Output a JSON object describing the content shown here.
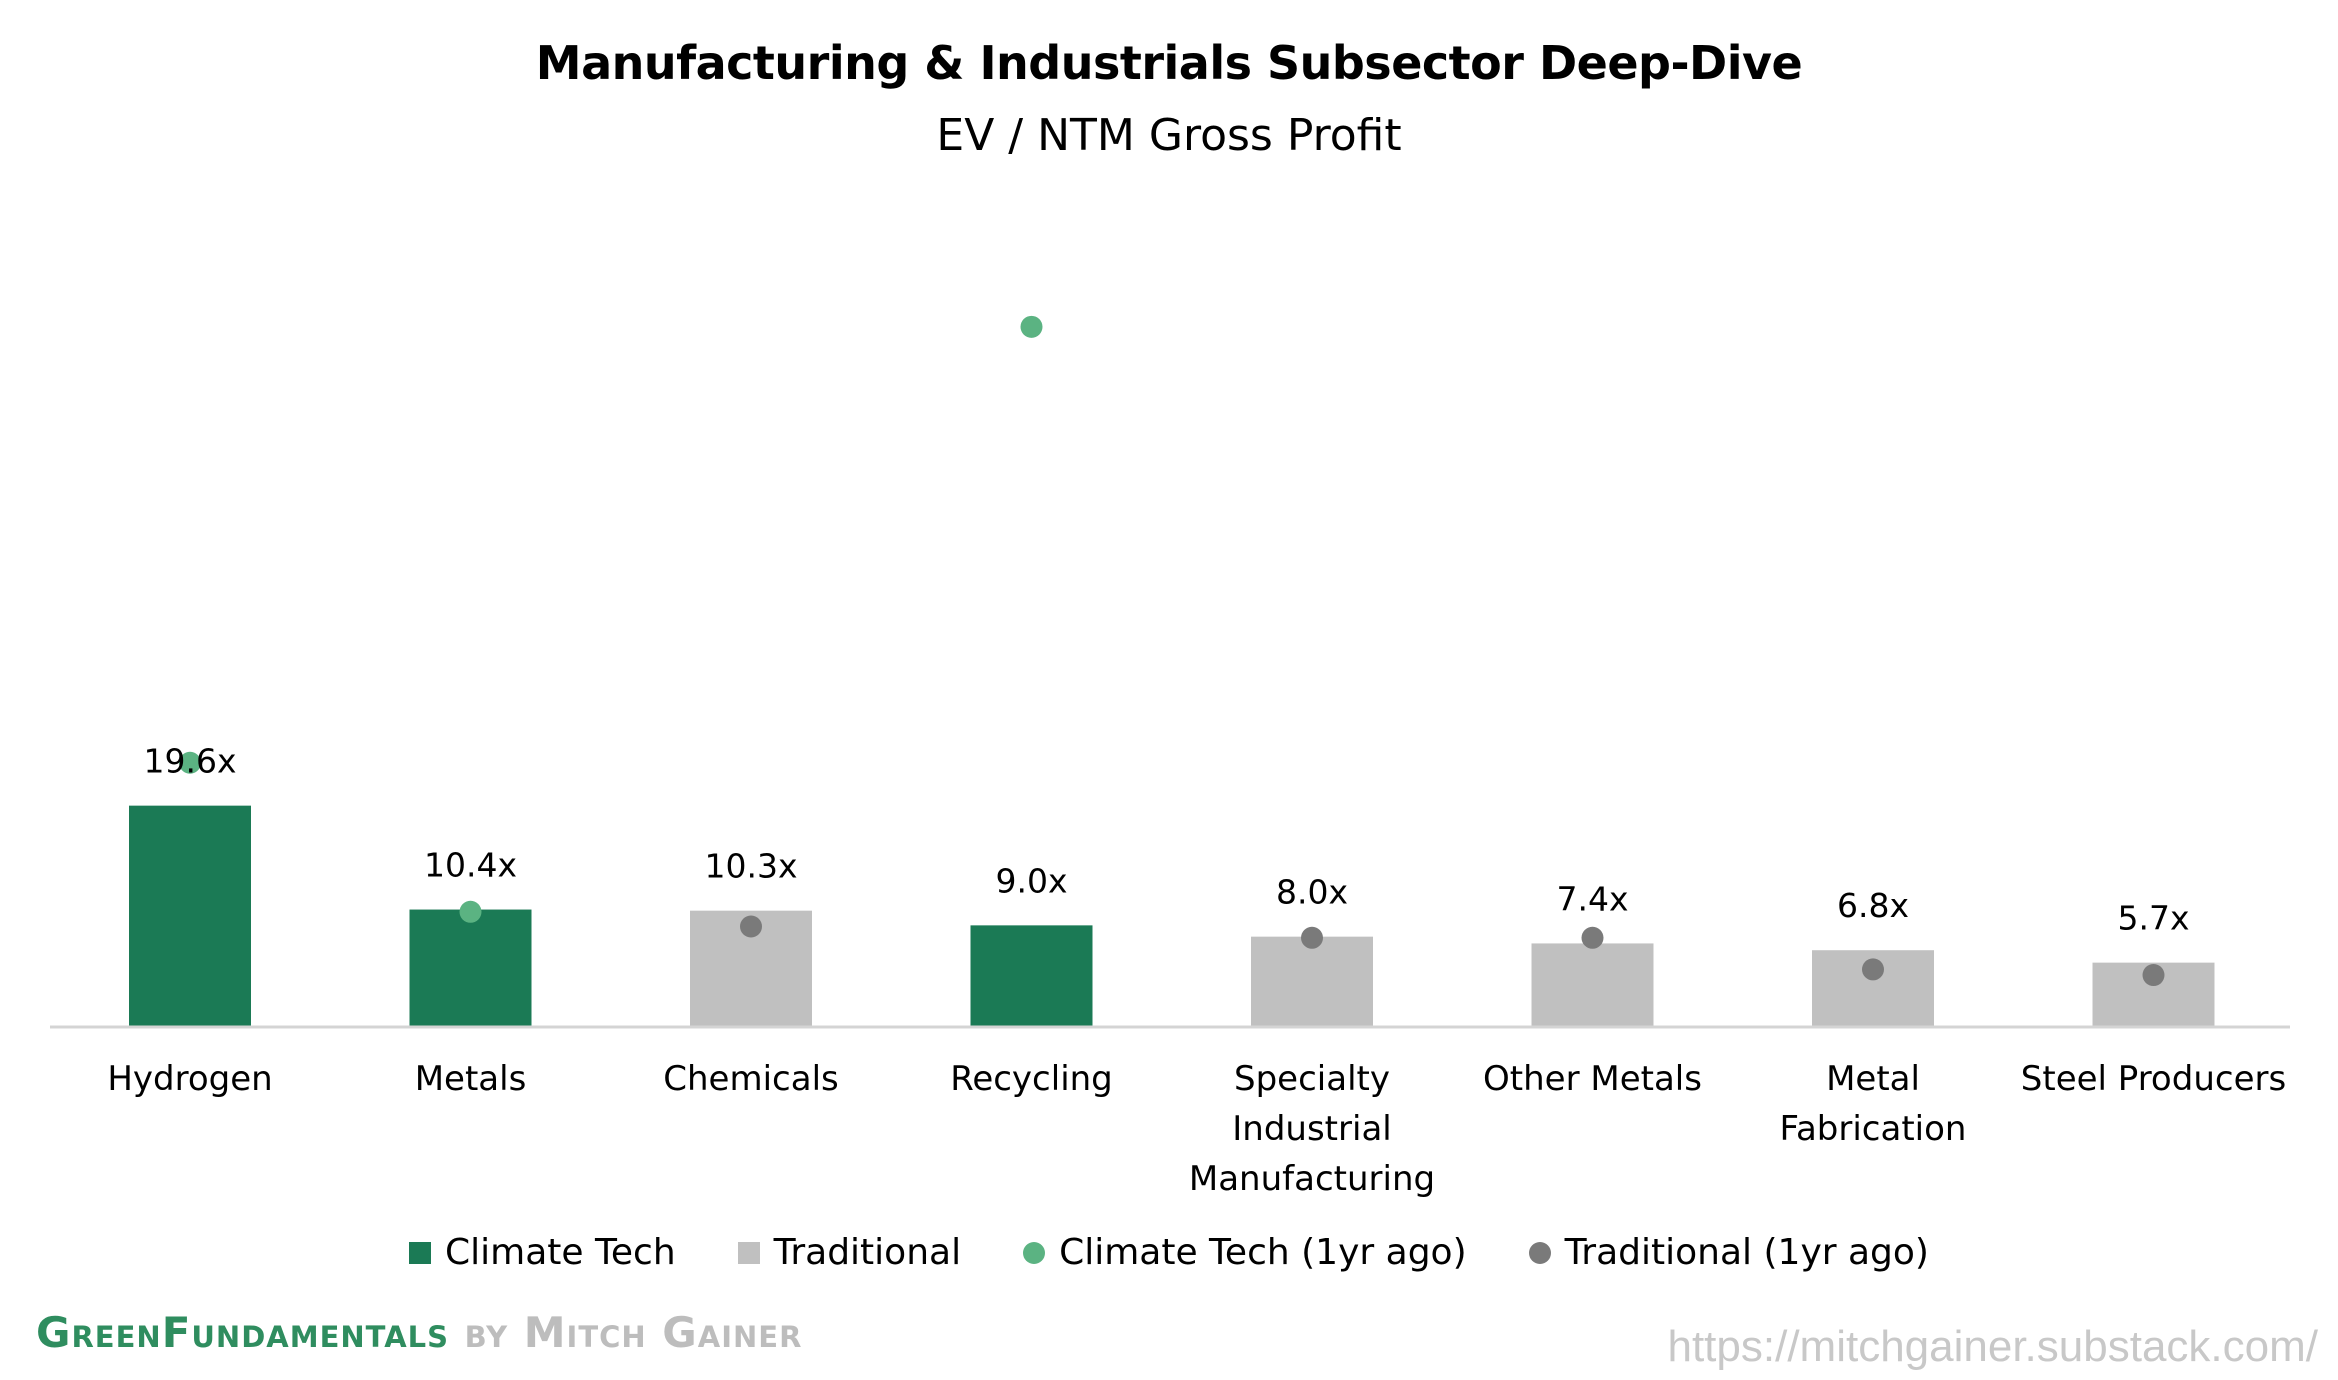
{
  "chart_data": {
    "type": "bar",
    "title": "Manufacturing & Industrials Subsector Deep-Dive",
    "subtitle": "EV / NTM Gross Profit",
    "categories": [
      "Hydrogen",
      "Metals",
      "Chemicals",
      "Recycling",
      "Specialty Industrial Manufacturing",
      "Other Metals",
      "Metal Fabrication",
      "Steel Producers"
    ],
    "category_lines": [
      [
        "Hydrogen"
      ],
      [
        "Metals"
      ],
      [
        "Chemicals"
      ],
      [
        "Recycling"
      ],
      [
        "Specialty",
        "Industrial",
        "Manufacturing"
      ],
      [
        "Other Metals"
      ],
      [
        "Metal",
        "Fabrication"
      ],
      [
        "Steel Producers"
      ]
    ],
    "values": [
      19.6,
      10.4,
      10.3,
      9.0,
      8.0,
      7.4,
      6.8,
      5.7
    ],
    "value_labels": [
      "19.6x",
      "10.4x",
      "10.3x",
      "9.0x",
      "8.0x",
      "7.4x",
      "6.8x",
      "5.7x"
    ],
    "group": [
      "Climate Tech",
      "Climate Tech",
      "Traditional",
      "Climate Tech",
      "Traditional",
      "Traditional",
      "Traditional",
      "Traditional"
    ],
    "one_year_ago": [
      23.4,
      10.2,
      8.9,
      62.0,
      7.9,
      7.9,
      5.1,
      4.6
    ],
    "ylim": [
      0,
      75
    ],
    "grid": false,
    "legend_position": "bottom",
    "series": [
      {
        "name": "Climate Tech",
        "color": "#1b7a55"
      },
      {
        "name": "Traditional",
        "color": "#c0c0c0"
      },
      {
        "name": "Climate Tech (1yr ago)",
        "color": "#5bb382"
      },
      {
        "name": "Traditional (1yr ago)",
        "color": "#7a7a7a"
      }
    ]
  },
  "footer": {
    "brand_green": "GreenFundamentals",
    "brand_by": " by Mitch Gainer",
    "url": "https://mitchgainer.substack.com/"
  }
}
